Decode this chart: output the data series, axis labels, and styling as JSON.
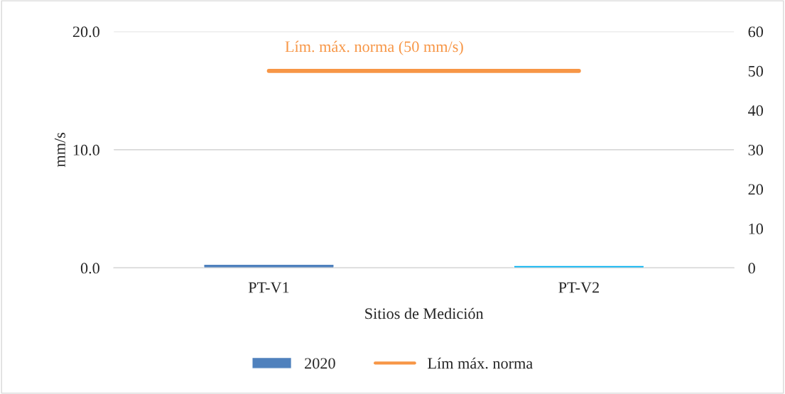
{
  "chart_data": {
    "type": "bar",
    "xlabel": "Sitios de Medición",
    "ylabel": "mm/s",
    "categories": [
      "PT-V1",
      "PT-V2"
    ],
    "series": [
      {
        "name": "2020",
        "color": "#4f81bd",
        "colors": [
          "#4f81bd",
          "#00b0f0"
        ],
        "values": [
          0.3,
          0.2
        ]
      },
      {
        "name": "Lím máx. norma",
        "type": "line",
        "axis": "y2",
        "color": "#f79646",
        "values": [
          50,
          50
        ]
      }
    ],
    "ylim": [
      0,
      20
    ],
    "yticks": [
      {
        "value": 0,
        "label": "0.0"
      },
      {
        "value": 10,
        "label": "10.0"
      },
      {
        "value": 20,
        "label": "20.0"
      }
    ],
    "y2lim": [
      0,
      60
    ],
    "y2ticks": [
      0,
      10,
      20,
      30,
      40,
      50,
      60
    ],
    "annotations": [
      "Lím. máx. norma (50 mm/s)"
    ],
    "grid": "y",
    "legend": "bottom",
    "marker": "none"
  }
}
